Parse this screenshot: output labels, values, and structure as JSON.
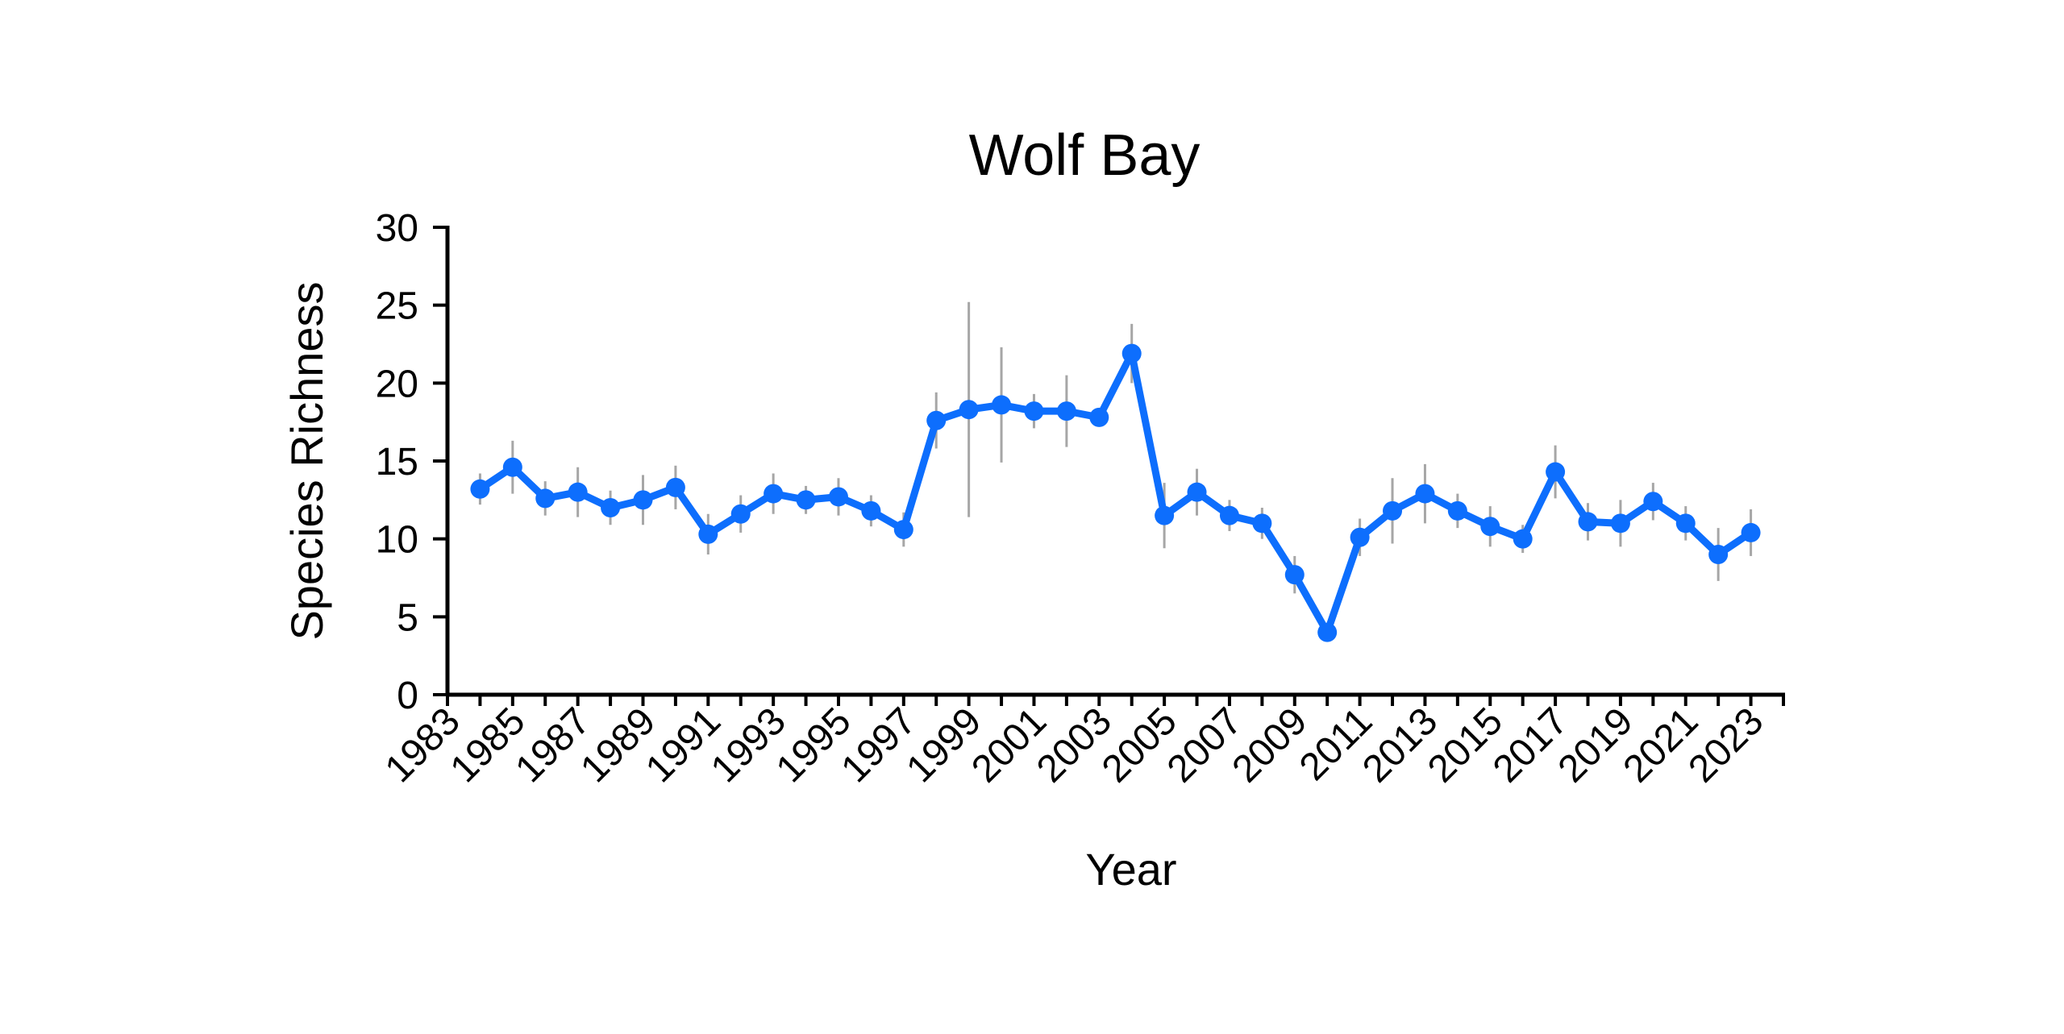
{
  "chart_data": {
    "type": "line",
    "title": "Wolf Bay",
    "xlabel": "Year",
    "ylabel": "Species Richness",
    "xlim": [
      1983,
      2024
    ],
    "ylim": [
      0,
      30
    ],
    "y_ticks": [
      0,
      5,
      10,
      15,
      20,
      25,
      30
    ],
    "x_tick_labels": [
      "1983",
      "1985",
      "1987",
      "1989",
      "1991",
      "1993",
      "1995",
      "1997",
      "1999",
      "2001",
      "2003",
      "2005",
      "2007",
      "2009",
      "2011",
      "2013",
      "2015",
      "2017",
      "2019",
      "2021",
      "2023"
    ],
    "grid": false,
    "legend": "none",
    "colors": {
      "line": "#0d6efd",
      "error_bar": "#a6a6a6",
      "axis": "#000000"
    },
    "series": [
      {
        "x": [
          1984,
          1985,
          1986,
          1987,
          1988,
          1989,
          1990,
          1991,
          1992,
          1993,
          1994,
          1995,
          1996,
          1997,
          1998,
          1999,
          2000,
          2001,
          2002,
          2003,
          2004,
          2005,
          2006,
          2007,
          2008,
          2009,
          2010,
          2011,
          2012,
          2013,
          2014,
          2015,
          2016,
          2017,
          2018,
          2019,
          2020,
          2021,
          2022,
          2023
        ],
        "y": [
          13.2,
          14.6,
          12.6,
          13.0,
          12.0,
          12.5,
          13.3,
          10.3,
          11.6,
          12.9,
          12.5,
          12.7,
          11.8,
          10.6,
          17.6,
          18.3,
          18.6,
          18.2,
          18.2,
          17.8,
          21.9,
          11.5,
          13.0,
          11.5,
          11.0,
          7.7,
          4.0,
          10.1,
          11.8,
          12.9,
          11.8,
          10.8,
          10.0,
          14.3,
          11.1,
          11.0,
          12.4,
          11.0,
          9.0,
          10.4
        ],
        "error": [
          1.0,
          1.7,
          1.1,
          1.6,
          1.1,
          1.6,
          1.4,
          1.3,
          1.2,
          1.3,
          0.9,
          1.2,
          1.0,
          1.1,
          1.8,
          6.9,
          3.7,
          1.1,
          2.3,
          0.5,
          1.9,
          2.1,
          1.5,
          1.0,
          1.0,
          1.2,
          0.5,
          1.2,
          2.1,
          1.9,
          1.1,
          1.3,
          0.9,
          1.7,
          1.2,
          1.5,
          1.2,
          1.1,
          1.7,
          1.5
        ]
      }
    ]
  }
}
